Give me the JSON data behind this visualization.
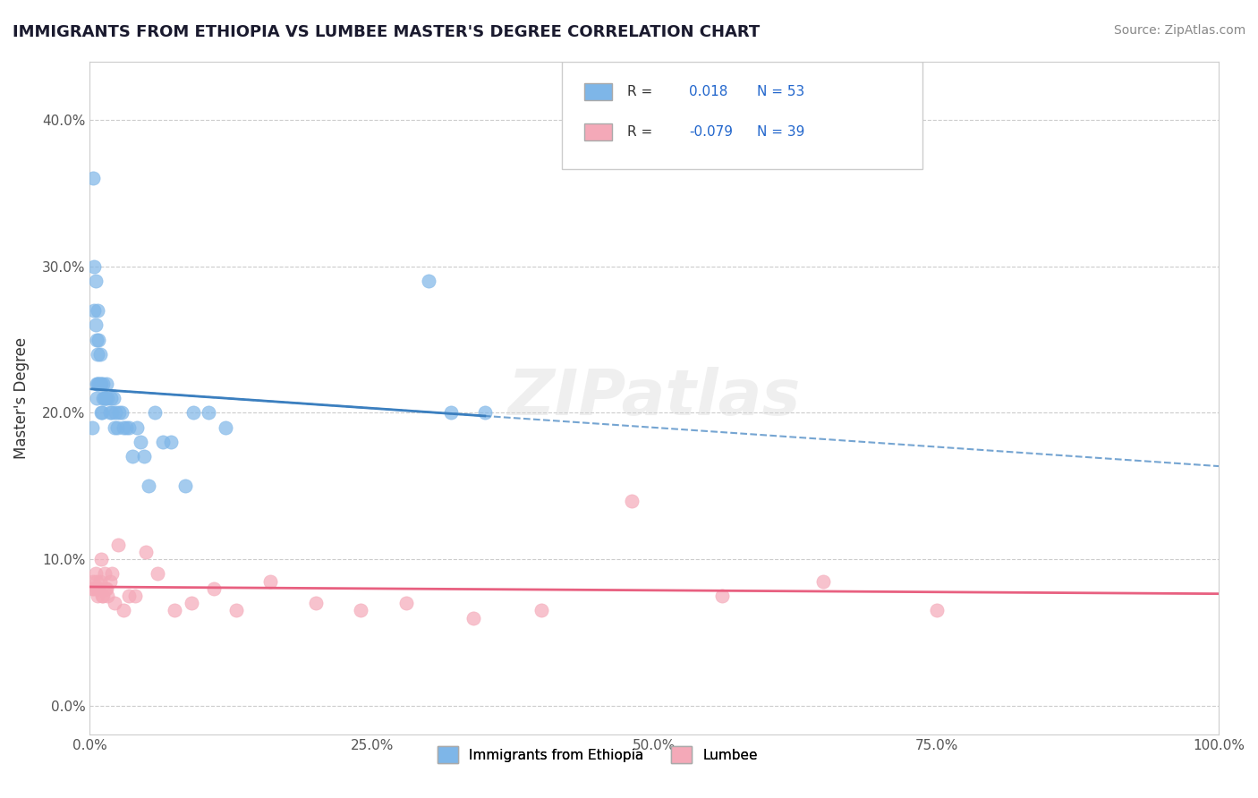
{
  "title": "IMMIGRANTS FROM ETHIOPIA VS LUMBEE MASTER'S DEGREE CORRELATION CHART",
  "source": "Source: ZipAtlas.com",
  "xlabel": "",
  "ylabel": "Master's Degree",
  "xlim": [
    0.0,
    1.0
  ],
  "ylim": [
    -0.02,
    0.44
  ],
  "xticks": [
    0.0,
    0.25,
    0.5,
    0.75,
    1.0
  ],
  "xtick_labels": [
    "0.0%",
    "25.0%",
    "50.0%",
    "75.0%",
    "100.0%"
  ],
  "yticks": [
    0.0,
    0.1,
    0.2,
    0.3,
    0.4
  ],
  "ytick_labels": [
    "0.0%",
    "10.0%",
    "20.0%",
    "30.0%",
    "40.0%"
  ],
  "legend_r1": "R =  0.018",
  "legend_n1": "N = 53",
  "legend_r2": "R = -0.079",
  "legend_n2": "N = 39",
  "blue_color": "#7EB6E8",
  "pink_color": "#F4A9B8",
  "blue_line_color": "#3B7FBF",
  "pink_line_color": "#E86080",
  "background_color": "#FFFFFF",
  "grid_color": "#CCCCCC",
  "watermark": "ZIPatlas",
  "ethiopia_x": [
    0.002,
    0.003,
    0.004,
    0.004,
    0.005,
    0.005,
    0.006,
    0.006,
    0.006,
    0.007,
    0.007,
    0.007,
    0.008,
    0.008,
    0.009,
    0.009,
    0.01,
    0.01,
    0.011,
    0.012,
    0.012,
    0.013,
    0.013,
    0.014,
    0.015,
    0.016,
    0.018,
    0.019,
    0.02,
    0.021,
    0.022,
    0.023,
    0.024,
    0.026,
    0.028,
    0.03,
    0.032,
    0.035,
    0.038,
    0.042,
    0.045,
    0.048,
    0.052,
    0.058,
    0.065,
    0.072,
    0.085,
    0.092,
    0.105,
    0.12,
    0.3,
    0.32,
    0.35
  ],
  "ethiopia_y": [
    0.19,
    0.36,
    0.3,
    0.27,
    0.29,
    0.26,
    0.25,
    0.22,
    0.21,
    0.27,
    0.24,
    0.22,
    0.25,
    0.22,
    0.24,
    0.22,
    0.2,
    0.22,
    0.2,
    0.22,
    0.21,
    0.21,
    0.21,
    0.21,
    0.22,
    0.21,
    0.2,
    0.21,
    0.2,
    0.21,
    0.19,
    0.2,
    0.19,
    0.2,
    0.2,
    0.19,
    0.19,
    0.19,
    0.17,
    0.19,
    0.18,
    0.17,
    0.15,
    0.2,
    0.18,
    0.18,
    0.15,
    0.2,
    0.2,
    0.19,
    0.29,
    0.2,
    0.2
  ],
  "lumbee_x": [
    0.002,
    0.003,
    0.004,
    0.005,
    0.006,
    0.006,
    0.007,
    0.008,
    0.009,
    0.01,
    0.011,
    0.012,
    0.013,
    0.014,
    0.015,
    0.016,
    0.018,
    0.02,
    0.022,
    0.025,
    0.03,
    0.035,
    0.04,
    0.05,
    0.06,
    0.075,
    0.09,
    0.11,
    0.13,
    0.16,
    0.2,
    0.24,
    0.28,
    0.34,
    0.4,
    0.48,
    0.56,
    0.65,
    0.75
  ],
  "lumbee_y": [
    0.08,
    0.085,
    0.08,
    0.09,
    0.085,
    0.08,
    0.075,
    0.08,
    0.085,
    0.1,
    0.075,
    0.075,
    0.09,
    0.08,
    0.08,
    0.075,
    0.085,
    0.09,
    0.07,
    0.11,
    0.065,
    0.075,
    0.075,
    0.105,
    0.09,
    0.065,
    0.07,
    0.08,
    0.065,
    0.085,
    0.07,
    0.065,
    0.07,
    0.06,
    0.065,
    0.14,
    0.075,
    0.085,
    0.065
  ]
}
